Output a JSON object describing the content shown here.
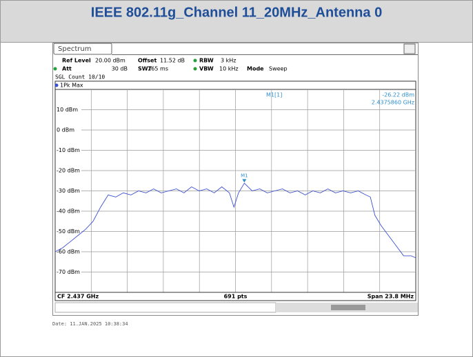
{
  "header": {
    "title": "IEEE 802.11g_Channel 11_20MHz_Antenna 0"
  },
  "chart_data": {
    "type": "line",
    "tab": "Spectrum",
    "params": [
      {
        "label": "Ref Level",
        "value": "20.00 dBm"
      },
      {
        "label": "Offset",
        "value": "11.52 dB"
      },
      {
        "label": "RBW",
        "value": "3 kHz"
      },
      {
        "label": "Att",
        "value": "30 dB"
      },
      {
        "label": "SWT",
        "value": "265 ms"
      },
      {
        "label": "VBW",
        "value": "10 kHz"
      },
      {
        "label": "Mode",
        "value": "Sweep"
      }
    ],
    "count": "SGL Count 10/10",
    "x": [
      2.4251,
      2.4256,
      2.4261,
      2.4266,
      2.4271,
      2.4276,
      2.4281,
      2.4286,
      2.4291,
      2.4296,
      2.4301,
      2.4306,
      2.4311,
      2.4316,
      2.4321,
      2.4326,
      2.4331,
      2.4336,
      2.4341,
      2.4346,
      2.4351,
      2.4356,
      2.4361,
      2.4366,
      2.4369,
      2.4372,
      2.437586,
      2.4381,
      2.4386,
      2.4391,
      2.4396,
      2.4401,
      2.4406,
      2.4411,
      2.4416,
      2.4421,
      2.4426,
      2.4431,
      2.4436,
      2.4441,
      2.4446,
      2.4451,
      2.4456,
      2.4459,
      2.4462,
      2.4466,
      2.4471,
      2.4476,
      2.4481,
      2.4486,
      2.4489
    ],
    "series": [
      {
        "name": "1Pk Max",
        "color": "#3a4fd0",
        "values": [
          -60,
          -58,
          -55,
          -52,
          -49,
          -45,
          -38,
          -32,
          -33,
          -31,
          -32,
          -30,
          -31,
          -29,
          -31,
          -30,
          -29,
          -31,
          -28,
          -30,
          -29,
          -31,
          -28,
          -31,
          -38,
          -31,
          -26.22,
          -30,
          -29,
          -31,
          -30,
          -29,
          -31,
          -30,
          -32,
          -30,
          -31,
          -29,
          -31,
          -30,
          -31,
          -30,
          -32,
          -33,
          -42,
          -47,
          -52,
          -57,
          -62,
          -62,
          -63
        ]
      }
    ],
    "xlim": [
      2.4251,
      2.4489
    ],
    "ylim": [
      -80,
      20
    ],
    "yticks": [
      {
        "value": 10,
        "label": "10 dBm"
      },
      {
        "value": 0,
        "label": "0 dBm"
      },
      {
        "value": -10,
        "label": "-10 dBm"
      },
      {
        "value": -20,
        "label": "-20 dBm"
      },
      {
        "value": -30,
        "label": "-30 dBm"
      },
      {
        "value": -40,
        "label": "-40 dBm"
      },
      {
        "value": -50,
        "label": "-50 dBm"
      },
      {
        "value": -60,
        "label": "-60 dBm"
      },
      {
        "value": -70,
        "label": "-70 dBm"
      }
    ],
    "grid": true,
    "marker": {
      "name": "M1",
      "label": "M1[1]",
      "x": 2.437586,
      "y": -26.22,
      "x_label": "2.4375860 GHz",
      "y_label": "-26.22 dBm"
    },
    "footer": {
      "left": "CF 2.437 GHz",
      "center": "691 pts",
      "right": "Span 23.8 MHz"
    },
    "date": "Date: 11.JAN.2025  10:38:34"
  }
}
